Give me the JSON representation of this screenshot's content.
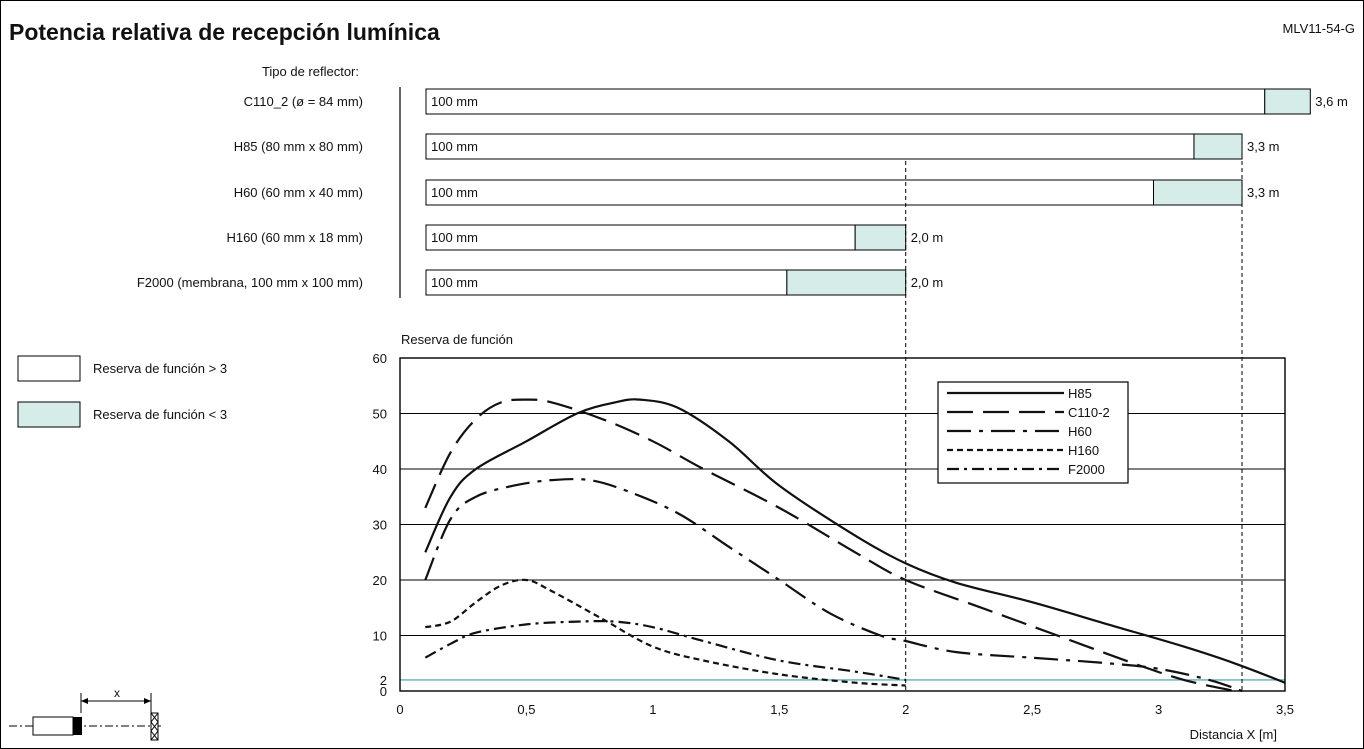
{
  "header": {
    "title": "Potencia relativa de recepción lumínica",
    "code": "MLV11-54-G"
  },
  "reflector_label": "Tipo de reflector:",
  "colors": {
    "reserve_high": "#ffffff",
    "reserve_low": "#d6ece8",
    "reference_line": "#5fb0b0"
  },
  "legend": {
    "high": "Reserva de función > 3",
    "low": "Reserva de función < 3"
  },
  "reflectors": [
    {
      "name": "C110_2 (ø = 84 mm)",
      "start_label": "100 mm",
      "split_m": 3.42,
      "range_m": 3.6,
      "range_label": "3,6 m"
    },
    {
      "name": "H85 (80 mm x 80 mm)",
      "start_label": "100 mm",
      "split_m": 3.14,
      "range_m": 3.33,
      "range_label": "3,3 m"
    },
    {
      "name": "H60 (60 mm x 40 mm)",
      "start_label": "100 mm",
      "split_m": 2.98,
      "range_m": 3.33,
      "range_label": "3,3 m"
    },
    {
      "name": "H160 (60 mm x 18 mm)",
      "start_label": "100 mm",
      "split_m": 1.8,
      "range_m": 2.0,
      "range_label": "2,0 m"
    },
    {
      "name": "F2000 (membrana, 100 mm x 100 mm)",
      "start_label": "100 mm",
      "split_m": 1.53,
      "range_m": 2.0,
      "range_label": "2,0 m"
    }
  ],
  "chart_data": {
    "type": "line",
    "ylabel": "Reserva de función",
    "xlabel": "Distancia X [m]",
    "xlim": [
      0,
      3.5
    ],
    "ylim": [
      0,
      60
    ],
    "x_ticks": [
      0,
      0.5,
      1,
      1.5,
      2,
      2.5,
      3,
      3.5
    ],
    "x_tick_labels": [
      "0",
      "0,5",
      "1",
      "1,5",
      "2",
      "2,5",
      "3",
      "3,5"
    ],
    "y_ticks": [
      0,
      2,
      10,
      20,
      30,
      40,
      50,
      60
    ],
    "y_tick_labels": [
      "0",
      "2",
      "10",
      "20",
      "30",
      "40",
      "50",
      "60"
    ],
    "reference_y": 2,
    "vertical_markers_x": [
      2.0,
      3.33
    ],
    "grid": "horizontal",
    "legend_position": "top-right",
    "series": [
      {
        "name": "H85",
        "dash": "solid",
        "x": [
          0.1,
          0.2,
          0.3,
          0.5,
          0.7,
          0.85,
          0.95,
          1.1,
          1.3,
          1.5,
          1.8,
          2.0,
          2.2,
          2.5,
          2.8,
          3.1,
          3.3,
          3.5
        ],
        "y": [
          25,
          35,
          40,
          45,
          50,
          52,
          52.5,
          51,
          45,
          37,
          28,
          23,
          19.5,
          16,
          12,
          8,
          5,
          1.5
        ]
      },
      {
        "name": "C110-2",
        "dash": "long-dash",
        "x": [
          0.1,
          0.2,
          0.3,
          0.4,
          0.5,
          0.6,
          0.8,
          1.0,
          1.2,
          1.5,
          1.8,
          2.0,
          2.3,
          2.6,
          2.9,
          3.1,
          3.3
        ],
        "y": [
          33,
          43,
          49,
          52,
          52.5,
          52,
          49,
          45,
          40,
          33,
          25,
          20,
          15,
          10,
          5,
          2,
          0
        ]
      },
      {
        "name": "H60",
        "dash": "dash-dot",
        "x": [
          0.1,
          0.2,
          0.3,
          0.45,
          0.6,
          0.75,
          0.9,
          1.1,
          1.3,
          1.5,
          1.7,
          1.9,
          2.0,
          2.2,
          2.5,
          2.8,
          3.0,
          3.2,
          3.33
        ],
        "y": [
          20,
          31,
          35,
          37,
          38,
          38,
          36,
          32,
          26,
          20,
          14,
          10,
          9,
          7,
          6,
          5,
          4,
          2,
          0
        ]
      },
      {
        "name": "H160",
        "dash": "short-dash",
        "x": [
          0.1,
          0.2,
          0.3,
          0.4,
          0.5,
          0.6,
          0.8,
          1.0,
          1.2,
          1.5,
          1.8,
          2.0
        ],
        "y": [
          11.5,
          12.5,
          16,
          19,
          20,
          18,
          13,
          8,
          5.5,
          3,
          1.5,
          1
        ]
      },
      {
        "name": "F2000",
        "dash": "dash-dot-short",
        "x": [
          0.1,
          0.2,
          0.3,
          0.5,
          0.7,
          0.85,
          1.0,
          1.2,
          1.5,
          1.8,
          2.0
        ],
        "y": [
          6,
          8.5,
          10.5,
          12,
          12.5,
          12.5,
          11.5,
          9,
          5.5,
          3.5,
          2
        ]
      }
    ]
  }
}
